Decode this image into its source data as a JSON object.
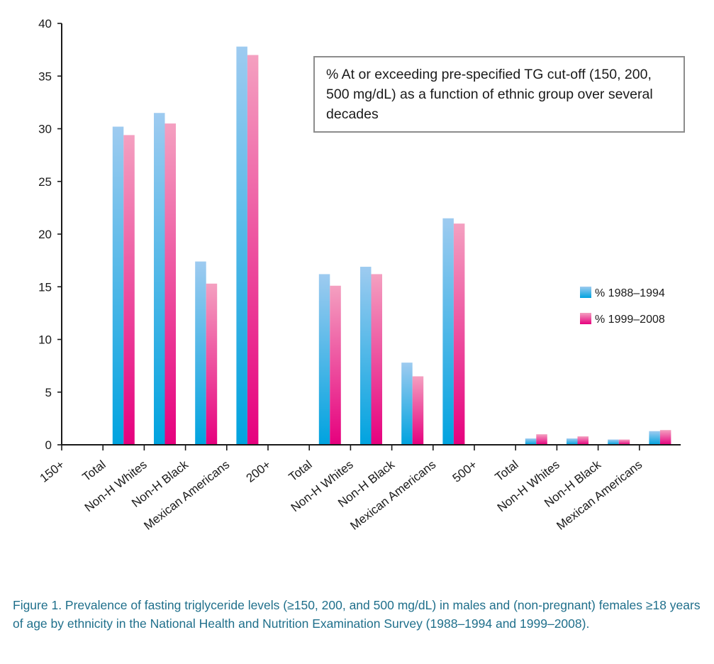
{
  "chart_data": {
    "type": "bar",
    "categories": [
      "150+",
      "Total",
      "Non-H Whites",
      "Non-H Black",
      "Mexican Americans",
      "200+",
      "Total",
      "Non-H Whites",
      "Non-H Black",
      "Mexican Americans",
      "500+",
      "Total",
      "Non-H Whites",
      "Non-H Black",
      "Mexican Americans"
    ],
    "series": [
      {
        "name": "% 1988–1994",
        "values": [
          null,
          30.2,
          31.5,
          17.4,
          37.8,
          null,
          16.2,
          16.9,
          7.8,
          21.5,
          null,
          0.6,
          0.6,
          0.5,
          1.3
        ],
        "color_top": "#9ecbf0",
        "color_bottom": "#00a3df"
      },
      {
        "name": "% 1999–2008",
        "values": [
          null,
          29.4,
          30.5,
          15.3,
          37.0,
          null,
          15.1,
          16.2,
          6.5,
          21.0,
          null,
          1.0,
          0.8,
          0.5,
          1.4
        ],
        "color_top": "#f4a0c0",
        "color_bottom": "#e6007e"
      }
    ],
    "yticks": [
      "0",
      "5",
      "10",
      "15",
      "20",
      "25",
      "30",
      "35",
      "40"
    ],
    "ylim": [
      0,
      40
    ],
    "title": "",
    "xlabel": "",
    "ylabel": "",
    "legend_position": "right",
    "grid": false,
    "annotation": "% At or exceeding pre-specified TG cut-off (150, 200, 500 mg/dL) as a function of ethnic group over several decades"
  },
  "caption": "Figure 1. Prevalence of fasting triglyceride levels (≥150, 200, and 500 mg/dL) in males and (non-pregnant) females ≥18 years of age by ethnicity in the National Health and Nutrition Examination Survey (1988–1994 and 1999–2008)."
}
